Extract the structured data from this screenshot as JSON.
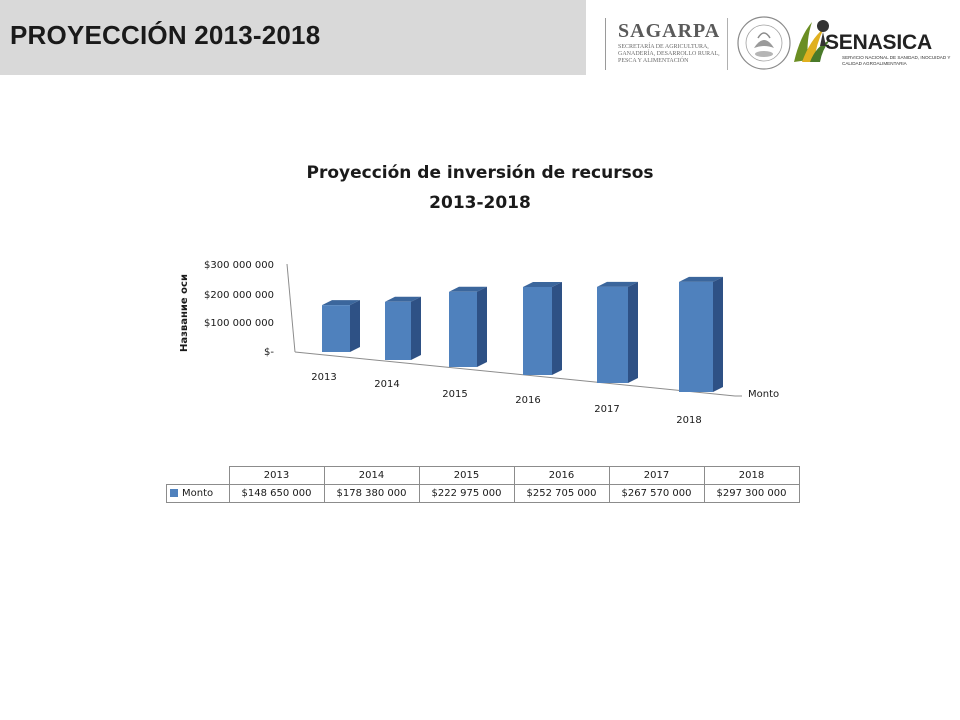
{
  "slide": {
    "title": "PROYECCIÓN 2013-2018"
  },
  "logos": {
    "sagarpa_name": "SAGARPA",
    "sagarpa_subtitle": "SECRETARÍA DE AGRICULTURA, GANADERÍA, DESARROLLO RURAL, PESCA Y ALIMENTACIÓN",
    "senasica_name": "SENASICA",
    "senasica_subtitle": "SERVICIO NACIONAL DE SANIDAD, INOCUIDAD Y CALIDAD AGROALIMENTARIA",
    "seal_text": "ESTADOS UNIDOS MEXICANOS"
  },
  "colors": {
    "bar_front": "#4f81bd",
    "bar_side": "#2e5185",
    "bar_top": "#3b669c",
    "header_band": "#d9d9d9"
  },
  "chart_data": {
    "type": "bar",
    "title_line1": "Proyección de inversión de recursos",
    "title_line2": "2013-2018",
    "ylabel": "Название оси",
    "yticks": [
      "$300 000 000",
      "$200 000 000",
      "$100 000 000",
      "$-"
    ],
    "ylim": [
      0,
      300000000
    ],
    "categories": [
      "2013",
      "2014",
      "2015",
      "2016",
      "2017",
      "2018"
    ],
    "series": [
      {
        "name": "Monto",
        "values": [
          148650000,
          178380000,
          222975000,
          252705000,
          267570000,
          297300000
        ],
        "labels": [
          "$148 650 000",
          "$178 380 000",
          "$222 975 000",
          "$252 705 000",
          "$267 570 000",
          "$297 300 000"
        ]
      }
    ],
    "depth_axis_label": "Monto",
    "data_table": true
  }
}
